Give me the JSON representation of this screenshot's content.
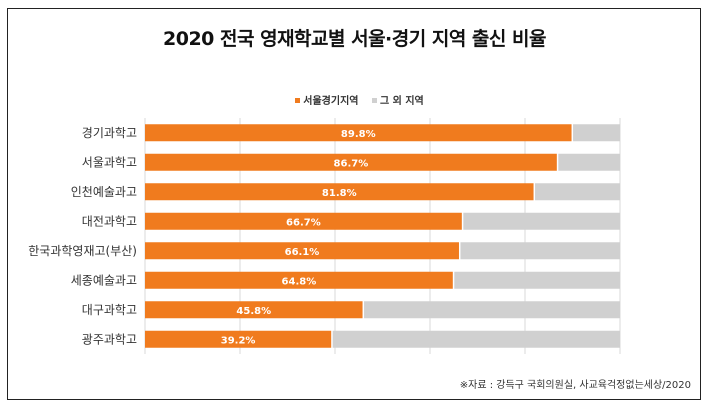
{
  "chart_data": {
    "type": "bar",
    "stacked": true,
    "orientation": "horizontal",
    "title": "2020 전국 영재학교별 서울·경기 지역 출신 비율",
    "categories": [
      "경기과학고",
      "서울과학고",
      "인천예술과고",
      "대전과학고",
      "한국과학영재고(부산)",
      "세종예술과고",
      "대구과학고",
      "광주과학고"
    ],
    "series": [
      {
        "name": "서울경기지역",
        "color": "#F07B1E",
        "values": [
          89.8,
          86.7,
          81.8,
          66.7,
          66.1,
          64.8,
          45.8,
          39.2
        ],
        "labels": [
          "89.8%",
          "86.7%",
          "81.8%",
          "66.7%",
          "66.1%",
          "64.8%",
          "45.8%",
          "39.2%"
        ]
      },
      {
        "name": "그 외 지역",
        "color": "#D0D0D0",
        "values": [
          10.2,
          13.3,
          18.2,
          33.3,
          33.9,
          35.2,
          54.2,
          60.8
        ]
      }
    ],
    "xlim": [
      0,
      100
    ],
    "grid": true,
    "legend": "top",
    "source": "※자료 : 강득구 국회의원실, 사교육걱정없는세상/2020"
  }
}
